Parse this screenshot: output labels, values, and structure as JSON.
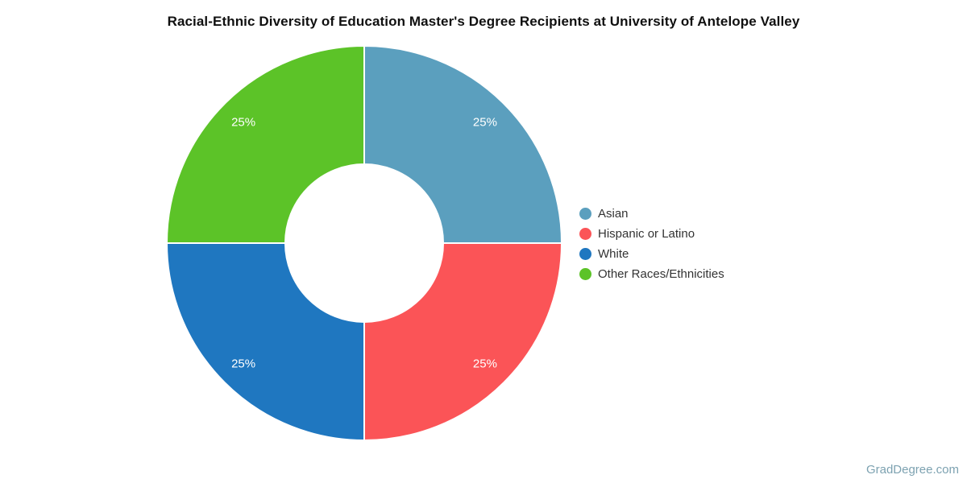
{
  "page": {
    "watermark": "GradDegree.com"
  },
  "chart_data": {
    "type": "pie",
    "title": "Racial-Ethnic Diversity of Education Master's Degree Recipients at University of Antelope Valley",
    "labels": [
      "Asian",
      "Hispanic or Latino",
      "White",
      "Other Races/Ethnicities"
    ],
    "values": [
      25,
      25,
      25,
      25
    ],
    "value_labels": [
      "25%",
      "25%",
      "25%",
      "25%"
    ],
    "colors": [
      "#5b9fbe",
      "#fb5457",
      "#1f77c0",
      "#5cc328"
    ],
    "hole": 0.4,
    "start_angle_deg": 0,
    "direction": "clockwise",
    "slice_label_color": "#ffffff",
    "legend_position": "right",
    "legend_marker": "circle",
    "separator_color": "#ffffff"
  }
}
